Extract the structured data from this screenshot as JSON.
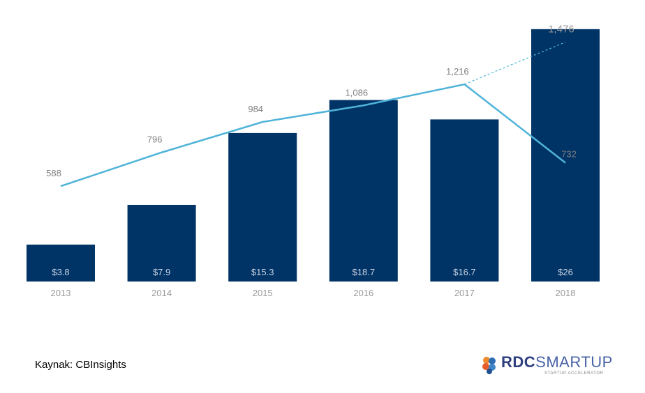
{
  "chart_data": {
    "type": "bar",
    "categories": [
      "2013",
      "2014",
      "2015",
      "2016",
      "2017",
      "2018"
    ],
    "series": [
      {
        "values": [
          3.8,
          7.9,
          15.3,
          18.7,
          16.7,
          26
        ],
        "labels": [
          "$3.8",
          "$7.9",
          "$15.3",
          "$18.7",
          "$16.7",
          "$26"
        ],
        "color": "#003366",
        "kind": "bar"
      },
      {
        "values": [
          588,
          796,
          984,
          1086,
          1216,
          732
        ],
        "labels": [
          "588",
          "796",
          "984",
          "1,086",
          "1,216",
          "732"
        ],
        "color": "#4fb3d9",
        "kind": "line"
      }
    ],
    "projection": {
      "value": 1476,
      "label": "1,476",
      "from": "2017",
      "to": "2018",
      "style": "dashed"
    },
    "title": "",
    "xlabel": "",
    "ylabel": "",
    "bar_ylim": [
      0,
      28
    ],
    "line_ylim": [
      0,
      1650
    ],
    "grid": false,
    "legend": "none"
  },
  "footer": {
    "source": "Kaynak: CBInsights",
    "logo_rdc": "RDC",
    "logo_smartup": "SMARTUP",
    "logo_sub": "STARTUP ACCELERATOR",
    "logo_icon": "brain-icon"
  }
}
